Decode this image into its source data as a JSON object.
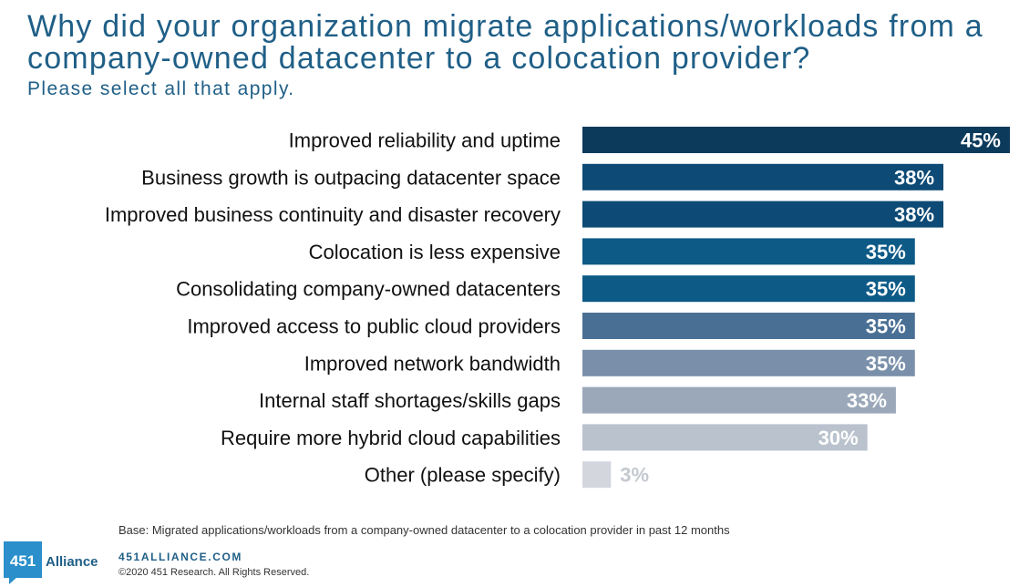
{
  "header": {
    "title": "Why did your organization migrate applications/workloads from a company-owned datacenter to a colocation provider?",
    "subtitle": "Please select all that apply."
  },
  "chart_data": {
    "type": "bar",
    "orientation": "horizontal",
    "categories": [
      "Improved reliability and uptime",
      "Business growth is outpacing datacenter space",
      "Improved business continuity and disaster recovery",
      "Colocation is less expensive",
      "Consolidating company-owned datacenters",
      "Improved access to public cloud providers",
      "Improved network bandwidth",
      "Internal staff shortages/skills gaps",
      "Require more hybrid cloud capabilities",
      "Other (please specify)"
    ],
    "values": [
      45,
      38,
      38,
      35,
      35,
      35,
      35,
      33,
      30,
      3
    ],
    "value_labels": [
      "45%",
      "38%",
      "38%",
      "35%",
      "35%",
      "35%",
      "35%",
      "33%",
      "30%",
      "3%"
    ],
    "colors": [
      "#0b3a5b",
      "#0d4a75",
      "#0d4a75",
      "#0d5a87",
      "#0d5a87",
      "#4a6f94",
      "#7a90aa",
      "#9aa8b9",
      "#b9c2cd",
      "#d3d7dd"
    ],
    "xlim": [
      0,
      45
    ],
    "grid": false,
    "legend": "none"
  },
  "footer": {
    "base": "Base: Migrated applications/workloads from a company-owned datacenter to a colocation provider in past 12 months",
    "logo_number": "451",
    "logo_word": "Alliance",
    "site": "451ALLIANCE.COM",
    "copyright": "©2020 451 Research. All Rights Reserved."
  }
}
